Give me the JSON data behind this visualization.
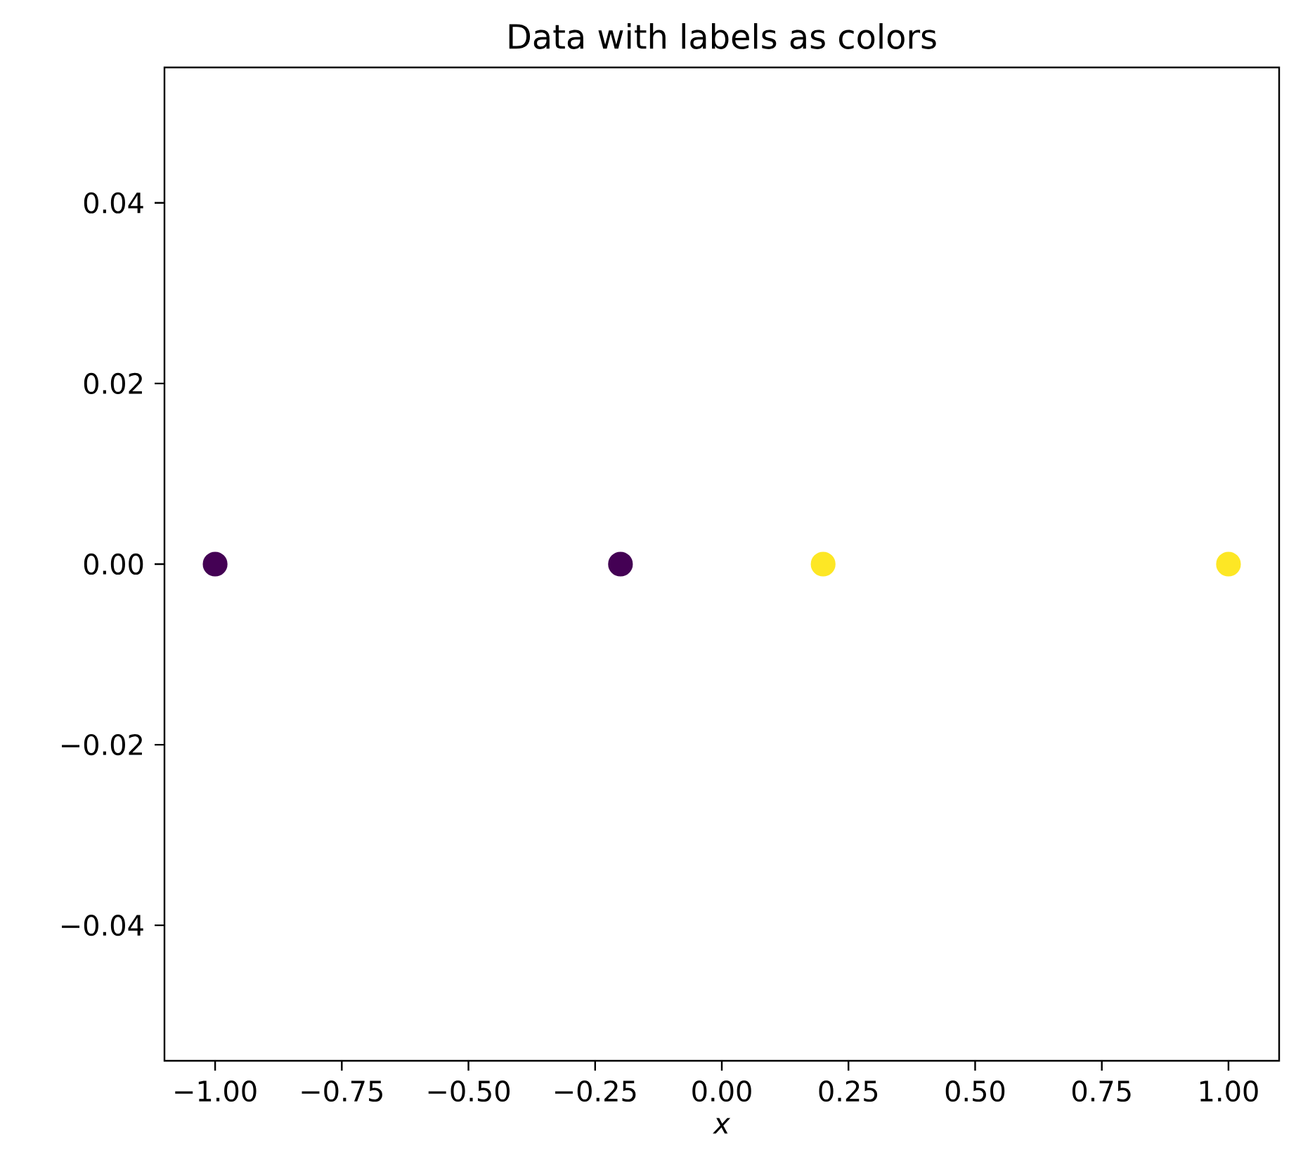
{
  "chart_data": {
    "type": "scatter",
    "title": "Data with labels as colors",
    "xlabel": "x",
    "x": [
      -1,
      -0.2,
      0.2,
      1
    ],
    "values": [
      0,
      0,
      0,
      0
    ],
    "colors": [
      "#440154",
      "#440154",
      "#fde725",
      "#fde725"
    ],
    "marker": "circle",
    "xlim": [
      -1.1,
      1.1
    ],
    "ylim": [
      -0.055,
      0.055
    ],
    "xticks": [
      {
        "value": -1,
        "label": "−1.00"
      },
      {
        "value": -0.75,
        "label": "−0.75"
      },
      {
        "value": -0.5,
        "label": "−0.50"
      },
      {
        "value": -0.25,
        "label": "−0.25"
      },
      {
        "value": 0,
        "label": "0.00"
      },
      {
        "value": 0.25,
        "label": "0.25"
      },
      {
        "value": 0.5,
        "label": "0.50"
      },
      {
        "value": 0.75,
        "label": "0.75"
      },
      {
        "value": 1,
        "label": "1.00"
      }
    ],
    "yticks": [
      {
        "value": -0.04,
        "label": "−0.04"
      },
      {
        "value": -0.02,
        "label": "−0.02"
      },
      {
        "value": 0,
        "label": "0.00"
      },
      {
        "value": 0.02,
        "label": "0.02"
      },
      {
        "value": 0.04,
        "label": "0.04"
      }
    ]
  }
}
